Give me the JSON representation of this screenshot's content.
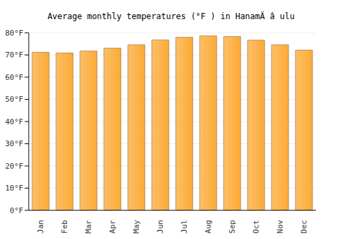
{
  "chart_data": {
    "type": "bar",
    "title": "Average monthly temperatures (°F ) in HanamÄ â ulu",
    "categories": [
      "Jan",
      "Feb",
      "Mar",
      "Apr",
      "May",
      "Jun",
      "Jul",
      "Aug",
      "Sep",
      "Oct",
      "Nov",
      "Dec"
    ],
    "values": [
      71.2,
      70.9,
      71.8,
      73.1,
      74.6,
      76.8,
      78.0,
      78.6,
      78.3,
      76.7,
      74.6,
      72.2
    ],
    "color": "#fcaa35",
    "ylim": [
      0,
      80
    ],
    "yticks": [
      {
        "value": 0,
        "label": "0°F"
      },
      {
        "value": 10,
        "label": "10°F"
      },
      {
        "value": 20,
        "label": "20°F"
      },
      {
        "value": 30,
        "label": "30°F"
      },
      {
        "value": 40,
        "label": "40°F"
      },
      {
        "value": 50,
        "label": "50°F"
      },
      {
        "value": 60,
        "label": "60°F"
      },
      {
        "value": 70,
        "label": "70°F"
      },
      {
        "value": 80,
        "label": "80°F"
      }
    ],
    "grid": true
  }
}
